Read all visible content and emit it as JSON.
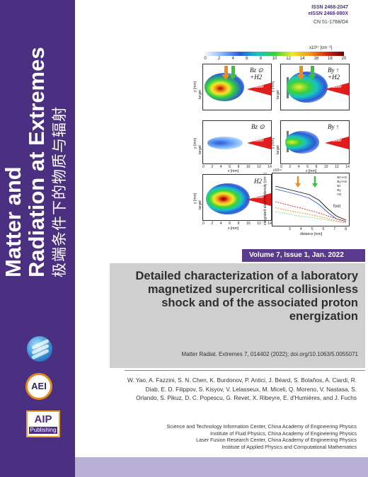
{
  "journal": {
    "title_line1": "Matter and",
    "title_line2": "Radiation at Extremes",
    "title_cn": "极端条件下的物质与辐射",
    "issn": "ISSN 2468-2047",
    "eissn": "eISSN 2468-080X",
    "cn": "CN 51-1768/O4",
    "publisher_logo_text": "AIP",
    "publisher_logo_sub": "Publishing",
    "aei_logo_text": "AEI"
  },
  "figure": {
    "colorbar_unit": "x10¹⁷ [cm⁻²]",
    "colorbar_ticks": [
      "0",
      "2",
      "4",
      "6",
      "8",
      "10",
      "12",
      "14",
      "16",
      "18",
      "20"
    ],
    "panel_tags": {
      "p1": "Bz ⊙ +H2",
      "p2": "By ↑ +H2",
      "p3": "Bz ⊙",
      "p4": "By ↑",
      "p5": "H2"
    },
    "laser_label": "laser",
    "target_label": "target",
    "y_label": "y [mm]",
    "x_label": "x [mm]",
    "x_ticks": [
      "0",
      "2",
      "4",
      "6",
      "8",
      "10",
      "12",
      "14"
    ],
    "graph": {
      "y_label": "integrated electron density [cm⁻²]",
      "x_label": "distance [mm]",
      "x_ticks": [
        "3",
        "4",
        "5",
        "6",
        "7",
        "8"
      ],
      "scale": "x10¹⁸",
      "legend": [
        "Bz+H2",
        "By+H2",
        "Bz",
        "By",
        "H2"
      ],
      "annotation": "foot"
    }
  },
  "issue": "Volume 7, Issue 1, Jan. 2022",
  "article": {
    "title": "Detailed characterization of a laboratory magnetized supercritical collisionless shock and of the associated proton energization",
    "citation": "Matter Radiat. Extremes 7, 014402 (2022); doi.org/10.1063/5.0055071",
    "authors": "W. Yao, A. Fazzini, S. N. Chen, K. Burdonov, P. Antici, J. Béard, S. Bolaños, A. Ciardi, R. Diab, E. D. Filippov, S. Kisyov, V. Lelasseux, M. Miceli, Q. Moreno, V. Nastasa, S. Orlando, S. Pikuz, D. C. Popescu, G. Revet, X. Ribeyre, E. d'Humières, and J. Fuchs"
  },
  "affiliations": [
    "Science and Technology Information Center, China Academy of Engineering Physics",
    "Institute of Fluid Physics, China Academy of Engineering Physics",
    "Laser Fusion Research Center, China Academy of Engineering Physics",
    "Institute of Applied Physics and Computational Mathematics"
  ],
  "colors": {
    "sidebar": "#4b2f80",
    "issue_bar": "#5a3a8f",
    "title_box": "#cfcfcf",
    "bottom_bar": "#b9b2d6"
  }
}
